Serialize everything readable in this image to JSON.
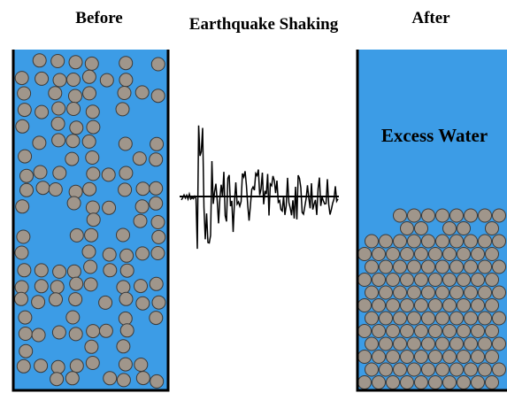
{
  "labels": {
    "before": "Before",
    "shaking": "Earthquake Shaking",
    "after": "After",
    "excess_water": "Excess Water"
  }
}
